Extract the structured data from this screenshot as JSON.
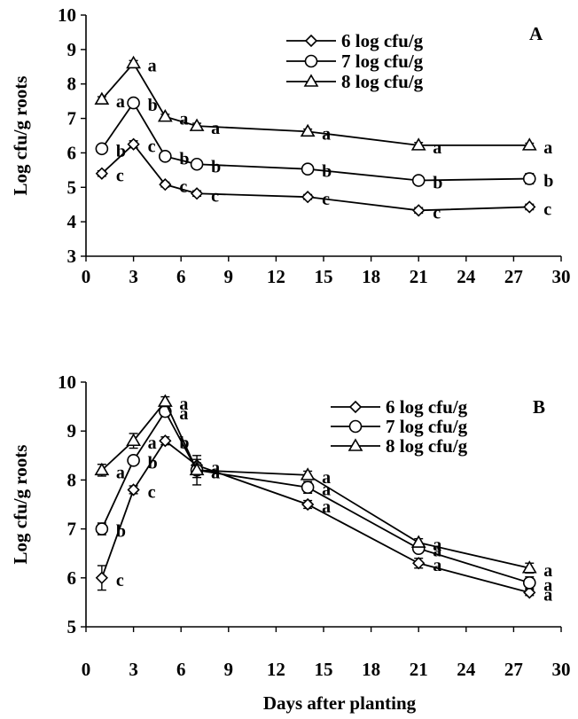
{
  "chart_data": [
    {
      "type": "line",
      "panel_label": "A",
      "title": "",
      "ylabel": "Log cfu/g roots",
      "xlabel": "",
      "xlim": [
        0,
        30
      ],
      "ylim": [
        3,
        10
      ],
      "xticks": [
        "0",
        "3",
        "6",
        "9",
        "12",
        "15",
        "18",
        "21",
        "24",
        "27",
        "30"
      ],
      "yticks": [
        "3",
        "4",
        "5",
        "6",
        "7",
        "8",
        "9",
        "10"
      ],
      "legend_position": "top-right",
      "series": [
        {
          "name": "6 log cfu/g",
          "marker": "diamond",
          "x": [
            1,
            3,
            5,
            7,
            14,
            21,
            28
          ],
          "values": [
            5.4,
            6.25,
            5.08,
            4.82,
            4.72,
            4.33,
            4.43
          ],
          "error": [
            0.08,
            0.1,
            0.07,
            0.08,
            0.07,
            0.08,
            0.08
          ],
          "labels": [
            "c",
            "c",
            "c",
            "c",
            "c",
            "c",
            "c"
          ]
        },
        {
          "name": "7 log cfu/g",
          "marker": "circle",
          "x": [
            1,
            3,
            5,
            7,
            14,
            21,
            28
          ],
          "values": [
            6.12,
            7.45,
            5.9,
            5.67,
            5.53,
            5.2,
            5.25
          ],
          "error": [
            0.1,
            0.08,
            0.08,
            0.07,
            0.07,
            0.06,
            0.15
          ],
          "labels": [
            "b",
            "b",
            "b",
            "b",
            "b",
            "b",
            "b"
          ]
        },
        {
          "name": "8 log cfu/g",
          "marker": "triangle",
          "x": [
            1,
            3,
            5,
            7,
            14,
            21,
            28
          ],
          "values": [
            7.55,
            8.6,
            7.05,
            6.78,
            6.62,
            6.22,
            6.22
          ],
          "error": [
            0.08,
            0.08,
            0.07,
            0.08,
            0.07,
            0.08,
            0.06
          ],
          "labels": [
            "a",
            "a",
            "a",
            "a",
            "a",
            "a",
            "a"
          ]
        }
      ]
    },
    {
      "type": "line",
      "panel_label": "B",
      "title": "",
      "ylabel": "Log cfu/g roots",
      "xlabel": "Days after planting",
      "xlim": [
        0,
        30
      ],
      "ylim": [
        5,
        10
      ],
      "xticks": [
        "0",
        "3",
        "6",
        "9",
        "12",
        "15",
        "18",
        "21",
        "24",
        "27",
        "30"
      ],
      "yticks": [
        "5",
        "6",
        "7",
        "8",
        "9",
        "10"
      ],
      "legend_position": "top-right",
      "series": [
        {
          "name": "6 log cfu/g",
          "marker": "diamond",
          "x": [
            1,
            3,
            5,
            7,
            14,
            21,
            28
          ],
          "values": [
            6.0,
            7.8,
            8.8,
            8.3,
            7.5,
            6.3,
            5.7
          ],
          "error": [
            0.25,
            0.08,
            0.08,
            0.12,
            0.08,
            0.1,
            0.06
          ],
          "labels": [
            "c",
            "c",
            "b",
            "a",
            "a",
            "a",
            "a"
          ]
        },
        {
          "name": "7 log cfu/g",
          "marker": "circle",
          "x": [
            1,
            3,
            5,
            7,
            14,
            21,
            28
          ],
          "values": [
            7.0,
            8.4,
            9.4,
            8.2,
            7.85,
            6.6,
            5.9
          ],
          "error": [
            0.12,
            0.06,
            0.1,
            0.3,
            0.12,
            0.08,
            0.12
          ],
          "labels": [
            "b",
            "b",
            "a",
            "a",
            "a",
            "a",
            "a"
          ]
        },
        {
          "name": "8 log cfu/g",
          "marker": "triangle",
          "x": [
            1,
            3,
            5,
            7,
            14,
            21,
            28
          ],
          "values": [
            8.2,
            8.8,
            9.6,
            8.2,
            8.1,
            6.72,
            6.2
          ],
          "error": [
            0.12,
            0.15,
            0.1,
            0.15,
            0.08,
            0.08,
            0.1
          ],
          "labels": [
            "a",
            "a",
            "a",
            "a",
            "a",
            "a",
            "a"
          ]
        }
      ]
    }
  ]
}
